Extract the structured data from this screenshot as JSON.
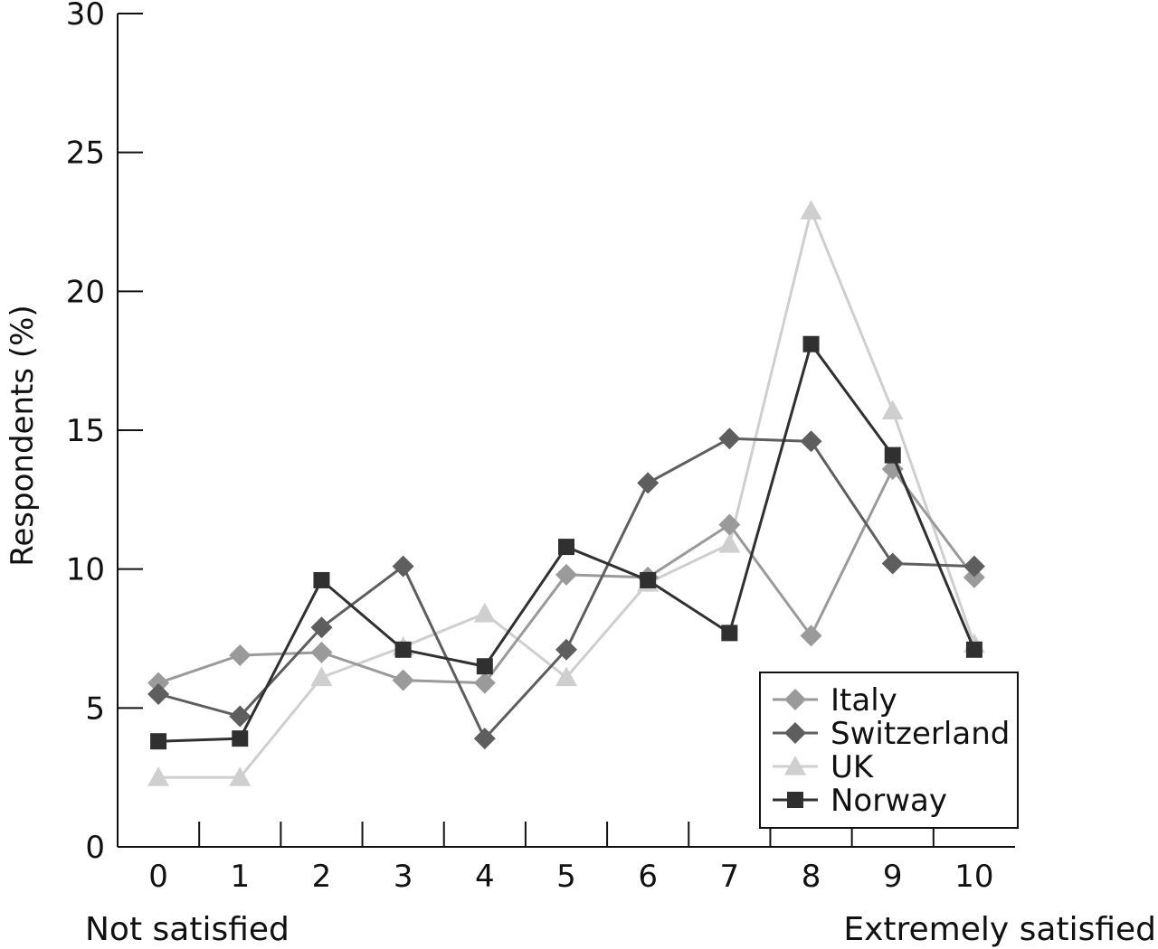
{
  "chart_data": {
    "type": "line",
    "title": "",
    "ylabel": "Respondents (%)",
    "xlabel": "",
    "x": [
      0,
      1,
      2,
      3,
      4,
      5,
      6,
      7,
      8,
      9,
      10
    ],
    "x_tick_labels": [
      "0",
      "1",
      "2",
      "3",
      "4",
      "5",
      "6",
      "7",
      "8",
      "9",
      "10"
    ],
    "xlim": [
      -0.5,
      10.5
    ],
    "ylim": [
      0,
      30
    ],
    "y_ticks": [
      0,
      5,
      10,
      15,
      20,
      25,
      30
    ],
    "y_tick_labels": [
      "0",
      "5",
      "10",
      "15",
      "20",
      "25",
      "30"
    ],
    "x_end_labels": {
      "left": "Not satisfied",
      "right": "Extremely satisfied"
    },
    "grid": false,
    "legend": {
      "position": "bottom-right",
      "entries": [
        "Italy",
        "Switzerland",
        "UK",
        "Norway"
      ]
    },
    "series": [
      {
        "name": "Italy",
        "color": "#9a9a9a",
        "marker": "diamond",
        "values": [
          5.9,
          6.9,
          7.0,
          6.0,
          5.9,
          9.8,
          9.7,
          11.6,
          7.6,
          13.6,
          9.7
        ]
      },
      {
        "name": "Switzerland",
        "color": "#5e5e5e",
        "marker": "diamond",
        "values": [
          5.5,
          4.7,
          7.9,
          10.1,
          3.9,
          7.1,
          13.1,
          14.7,
          14.6,
          10.2,
          10.1
        ]
      },
      {
        "name": "UK",
        "color": "#cfcfcf",
        "marker": "triangle",
        "values": [
          2.5,
          2.5,
          6.1,
          7.2,
          8.4,
          6.1,
          9.5,
          10.9,
          22.9,
          15.7,
          7.3
        ]
      },
      {
        "name": "Norway",
        "color": "#303030",
        "marker": "square",
        "values": [
          3.8,
          3.9,
          9.6,
          7.1,
          6.5,
          10.8,
          9.6,
          7.7,
          18.1,
          14.1,
          7.1
        ]
      }
    ]
  }
}
